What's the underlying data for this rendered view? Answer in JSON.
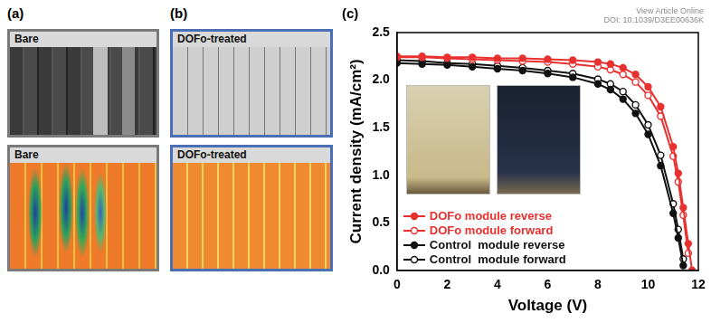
{
  "header": {
    "link_text": "View Article Online",
    "doi": "DOI: 10.1039/D3EE00636K"
  },
  "panels": [
    {
      "label": "(a)",
      "image_titles": [
        "Bare",
        "Bare"
      ]
    },
    {
      "label": "(b)",
      "image_titles": [
        "DOFo-treated",
        "DOFo-treated"
      ]
    }
  ],
  "chart_data": {
    "panel_label": "(c)",
    "type": "line",
    "x_label": "Voltage (V)",
    "y_label": "Current density (mA/cm²)",
    "x": [
      0,
      1,
      2,
      3,
      4,
      5,
      6,
      7,
      8,
      8.5,
      9,
      9.5,
      10,
      10.5,
      11,
      11.2,
      11.4,
      11.6,
      11.75
    ],
    "series": [
      {
        "name": "DOFo module reverse",
        "color": "#e8312f",
        "marker": "circle",
        "line_style": "solid",
        "values": [
          2.25,
          2.25,
          2.24,
          2.24,
          2.23,
          2.23,
          2.22,
          2.21,
          2.19,
          2.17,
          2.13,
          2.06,
          1.93,
          1.72,
          1.3,
          1.02,
          0.66,
          0.28,
          0.0
        ]
      },
      {
        "name": "DOFo module forward",
        "color": "#e8312f",
        "marker": "open_circle",
        "line_style": "solid",
        "values": [
          2.24,
          2.24,
          2.23,
          2.22,
          2.21,
          2.2,
          2.19,
          2.17,
          2.14,
          2.11,
          2.06,
          1.98,
          1.84,
          1.62,
          1.2,
          0.93,
          0.58,
          0.18,
          null
        ]
      },
      {
        "name": "Control  module reverse",
        "color": "#111111",
        "marker": "circle",
        "line_style": "solid",
        "values": [
          2.18,
          2.17,
          2.16,
          2.14,
          2.12,
          2.1,
          2.07,
          2.03,
          1.96,
          1.9,
          1.8,
          1.65,
          1.43,
          1.1,
          0.6,
          0.34,
          0.05,
          null,
          null
        ]
      },
      {
        "name": "Control  module forward",
        "color": "#111111",
        "marker": "open_circle",
        "line_style": "solid",
        "values": [
          2.21,
          2.2,
          2.18,
          2.17,
          2.15,
          2.13,
          2.1,
          2.07,
          2.01,
          1.96,
          1.88,
          1.74,
          1.53,
          1.21,
          0.7,
          0.43,
          0.12,
          null,
          null
        ]
      }
    ],
    "xlim": [
      0,
      12
    ],
    "xticks": [
      0,
      2,
      4,
      6,
      8,
      10,
      12
    ],
    "ylim": [
      0,
      2.5
    ],
    "yticks": [
      {
        "value": 0,
        "label": "0.0"
      },
      {
        "value": 0.5,
        "label": "0.5"
      },
      {
        "value": 1,
        "label": "1.0"
      },
      {
        "value": 1.5,
        "label": "1.5"
      },
      {
        "value": 2,
        "label": "2.0"
      },
      {
        "value": 2.5,
        "label": "2.5"
      }
    ],
    "grid": false,
    "legend": "lower left"
  }
}
